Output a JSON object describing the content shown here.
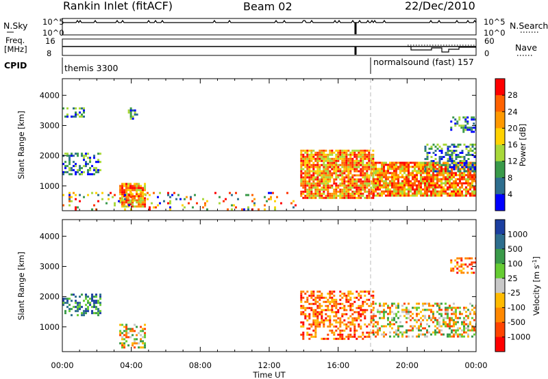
{
  "header": {
    "title": "Rankin Inlet (fitACF)",
    "beam": "Beam 02",
    "date": "22/Dec/2010"
  },
  "strip_nsky": {
    "label": "N.Sky",
    "left_ticks": [
      "10^5",
      "10^0"
    ],
    "right_ticks": [
      "10^5",
      "10^0"
    ],
    "right_label": "N.Search"
  },
  "strip_freq": {
    "label_line1": "Freq.",
    "label_line2": "[MHz]",
    "left_ticks": [
      "16",
      "8"
    ],
    "right_ticks": [
      "60",
      "0"
    ],
    "right_label": "Nave"
  },
  "cpid": {
    "label": "CPID",
    "mode1": "themis 3300",
    "mode2": "normalsound (fast) 157",
    "mode_change_time": 18.0
  },
  "chart_data": [
    {
      "type": "heatmap",
      "panel": "power",
      "ylabel": "Slant Range [km]",
      "y_ticks": [
        "1000",
        "2000",
        "3000",
        "4000"
      ],
      "ylim": [
        180,
        4550
      ],
      "x_ticks": [
        "00:00",
        "04:00",
        "08:00",
        "12:00",
        "16:00",
        "20:00",
        "00:00"
      ],
      "xlim_hours": [
        0,
        24
      ],
      "colorbar": {
        "label": "Power [dB]",
        "ticks": [
          "28",
          "24",
          "20",
          "16",
          "12",
          "8",
          "4"
        ],
        "colors": [
          "#ff0000",
          "#ff6200",
          "#ff9900",
          "#ffd200",
          "#a8d83a",
          "#3a9a4a",
          "#2e6e8e",
          "#0000ff"
        ]
      },
      "regions": [
        {
          "t": [
            0.0,
            2.2
          ],
          "r": [
            1400,
            2100
          ],
          "level": "weak"
        },
        {
          "t": [
            0.0,
            1.3
          ],
          "r": [
            3300,
            3600
          ],
          "level": "weak"
        },
        {
          "t": [
            3.8,
            4.3
          ],
          "r": [
            3200,
            3600
          ],
          "level": "weak"
        },
        {
          "t": [
            3.3,
            4.8
          ],
          "r": [
            300,
            1100
          ],
          "level": "strong"
        },
        {
          "t": [
            0.0,
            13.5
          ],
          "r": [
            200,
            800
          ],
          "level": "sparse"
        },
        {
          "t": [
            13.8,
            18.0
          ],
          "r": [
            600,
            2200
          ],
          "level": "strong"
        },
        {
          "t": [
            18.0,
            24.0
          ],
          "r": [
            650,
            1800
          ],
          "level": "strong"
        },
        {
          "t": [
            21.0,
            24.0
          ],
          "r": [
            1500,
            2400
          ],
          "level": "weak"
        },
        {
          "t": [
            22.5,
            24.0
          ],
          "r": [
            2800,
            3300
          ],
          "level": "weak"
        }
      ]
    },
    {
      "type": "heatmap",
      "panel": "velocity",
      "ylabel": "Slant Range [km]",
      "y_ticks": [
        "1000",
        "2000",
        "3000",
        "4000"
      ],
      "ylim": [
        180,
        4550
      ],
      "x_ticks": [
        "00:00",
        "04:00",
        "08:00",
        "12:00",
        "16:00",
        "20:00",
        "00:00"
      ],
      "xlim_hours": [
        0,
        24
      ],
      "xlabel": "Time UT",
      "colorbar": {
        "label": "Velocity [m s",
        "label_sup": "-1",
        "label_end": "]",
        "ticks": [
          "1000",
          "500",
          "100",
          "25",
          "-25",
          "-100",
          "-500",
          "-1000"
        ],
        "colors": [
          "#1c3fa0",
          "#2e6e8e",
          "#3a9a4a",
          "#66cc33",
          "#c8c8c8",
          "#ffbb00",
          "#ff8800",
          "#ff4400",
          "#ff0000"
        ]
      },
      "regions": [
        {
          "t": [
            0.0,
            2.2
          ],
          "r": [
            1400,
            2100
          ],
          "level": "away"
        },
        {
          "t": [
            3.3,
            4.8
          ],
          "r": [
            300,
            1100
          ],
          "level": "mixed"
        },
        {
          "t": [
            13.8,
            18.0
          ],
          "r": [
            600,
            2200
          ],
          "level": "toward"
        },
        {
          "t": [
            18.0,
            24.0
          ],
          "r": [
            650,
            1800
          ],
          "level": "mixed"
        },
        {
          "t": [
            22.5,
            24.0
          ],
          "r": [
            2800,
            3300
          ],
          "level": "toward"
        }
      ]
    }
  ],
  "colors": {
    "axis": "#000000",
    "dashed_marker": "#bbbbbb"
  }
}
